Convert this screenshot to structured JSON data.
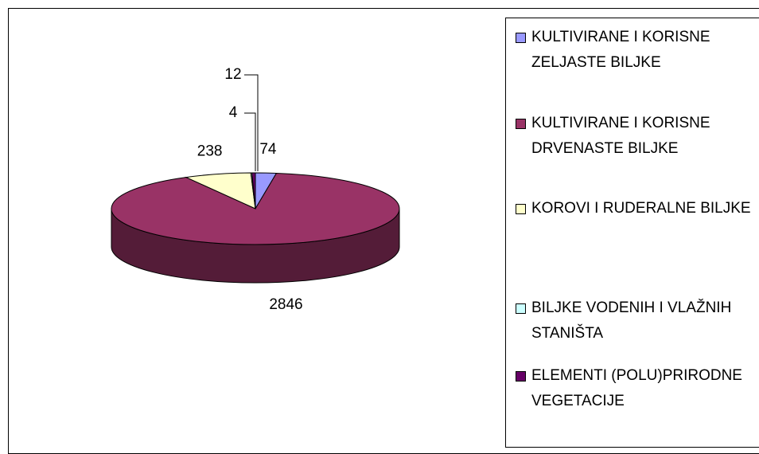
{
  "chart_data": {
    "type": "pie",
    "categories": [
      "KULTIVIRANE I KORISNE ZELJASTE BILJKE",
      "KULTIVIRANE I KORISNE DRVENASTE BILJKE",
      "KOROVI I RUDERALNE BILJKE",
      "BILJKE VODENIH I VLAŽNIH STANIŠTA",
      "ELEMENTI (POLU)PRIRODNE VEGETACIJE"
    ],
    "values": [
      74,
      2846,
      238,
      4,
      12
    ],
    "colors": [
      "#9999ff",
      "#993366",
      "#ffffcc",
      "#ccffff",
      "#660066"
    ]
  }
}
